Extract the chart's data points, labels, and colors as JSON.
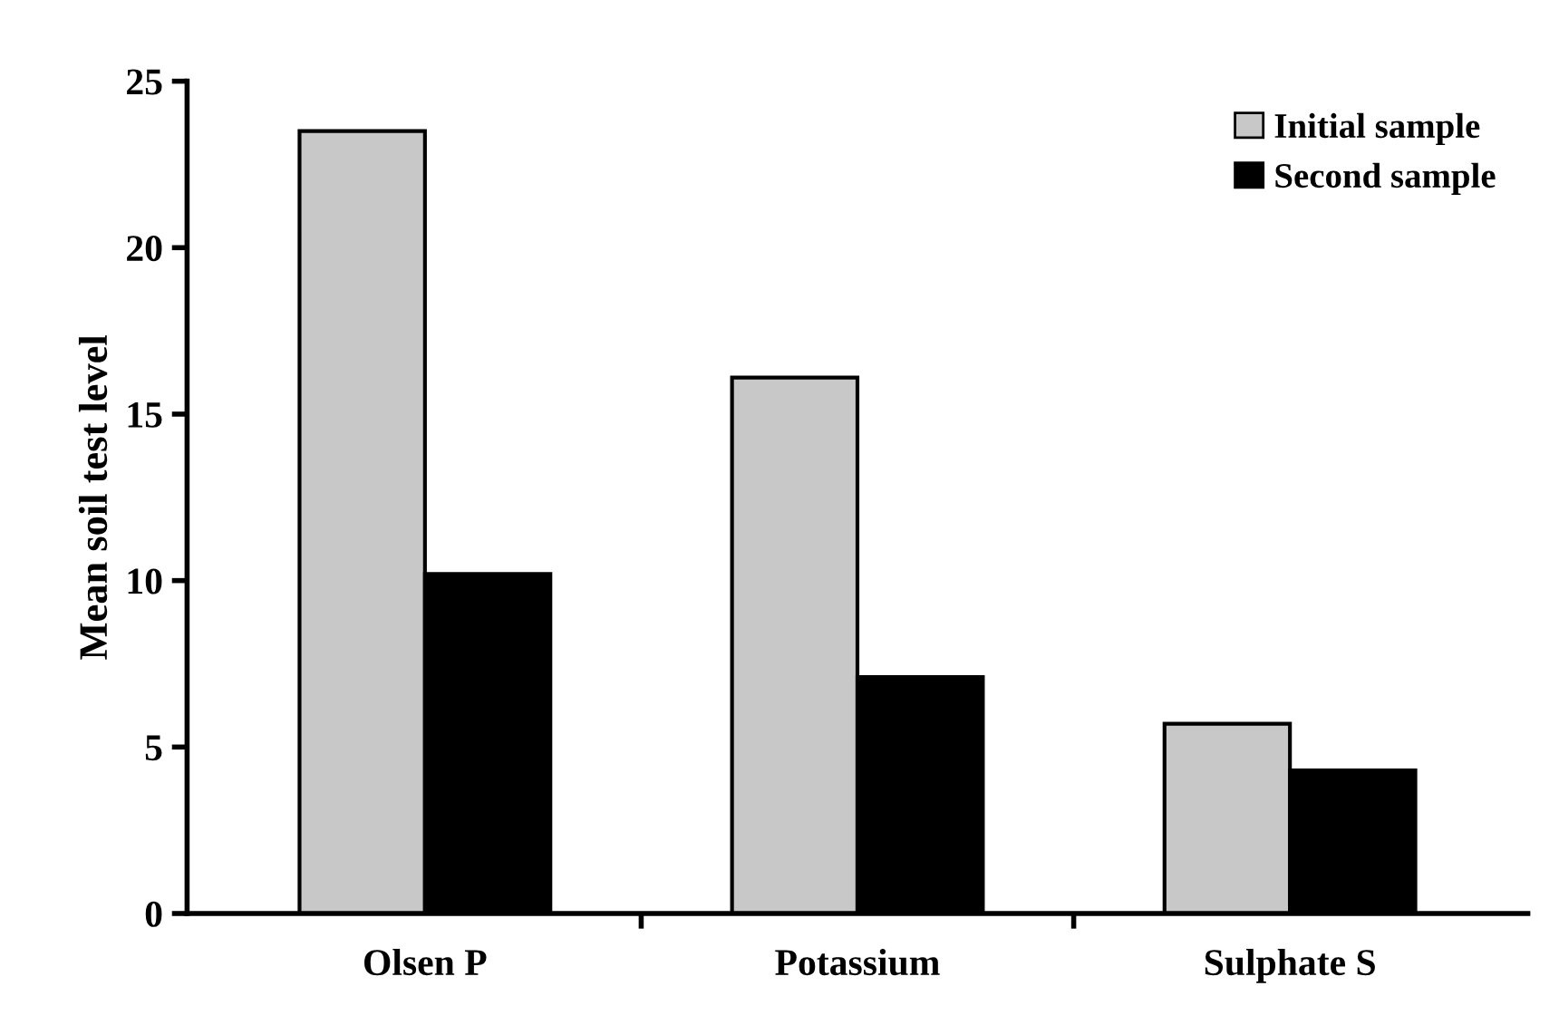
{
  "chart_data": {
    "type": "bar",
    "ylabel": "Mean soil test level",
    "categories": [
      "Olsen P",
      "Potassium",
      "Sulphate S"
    ],
    "series": [
      {
        "name": "Initial sample",
        "color": "#c8c8c8",
        "values": [
          23.5,
          16.1,
          5.7
        ]
      },
      {
        "name": "Second sample",
        "color": "#000000",
        "values": [
          10.2,
          7.1,
          4.3
        ]
      }
    ],
    "ylim": [
      0,
      25
    ],
    "yticks": [
      0,
      5,
      10,
      15,
      20,
      25
    ],
    "grid": false,
    "legend": "top right"
  }
}
